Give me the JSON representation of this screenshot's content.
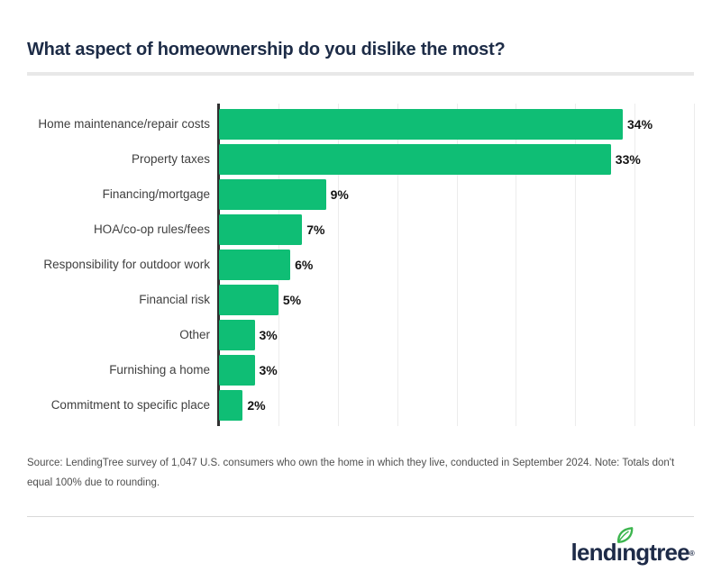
{
  "title": "What aspect of homeownership do you dislike the most?",
  "chart_data": {
    "type": "bar",
    "orientation": "horizontal",
    "title": "What aspect of homeownership do you dislike the most?",
    "categories": [
      "Home maintenance/repair costs",
      "Property taxes",
      "Financing/mortgage",
      "HOA/co-op rules/fees",
      "Responsibility for outdoor work",
      "Financial risk",
      "Other",
      "Furnishing a home",
      "Commitment to specific place"
    ],
    "values": [
      34,
      33,
      9,
      7,
      6,
      5,
      3,
      3,
      2
    ],
    "value_labels": [
      "34%",
      "33%",
      "9%",
      "7%",
      "6%",
      "5%",
      "3%",
      "3%",
      "2%"
    ],
    "xlabel": "",
    "ylabel": "",
    "xlim": [
      0,
      40
    ],
    "gridline_interval": 5,
    "grid": true,
    "legend": false,
    "bar_color": "#0fbe75"
  },
  "source_note": "Source: LendingTree survey of 1,047 U.S. consumers who own the home in which they live, conducted in September 2024. Note: Totals don't equal 100% due to rounding.",
  "footer": {
    "logo_text": "lendingtree",
    "logo_registered": "®"
  },
  "colors": {
    "accent_green": "#0fbe75",
    "leaf_green": "#3cb54e",
    "brand_navy": "#1e2b48",
    "title_navy": "#1d2c47",
    "axis": "#303030",
    "gridline": "#ececec"
  }
}
